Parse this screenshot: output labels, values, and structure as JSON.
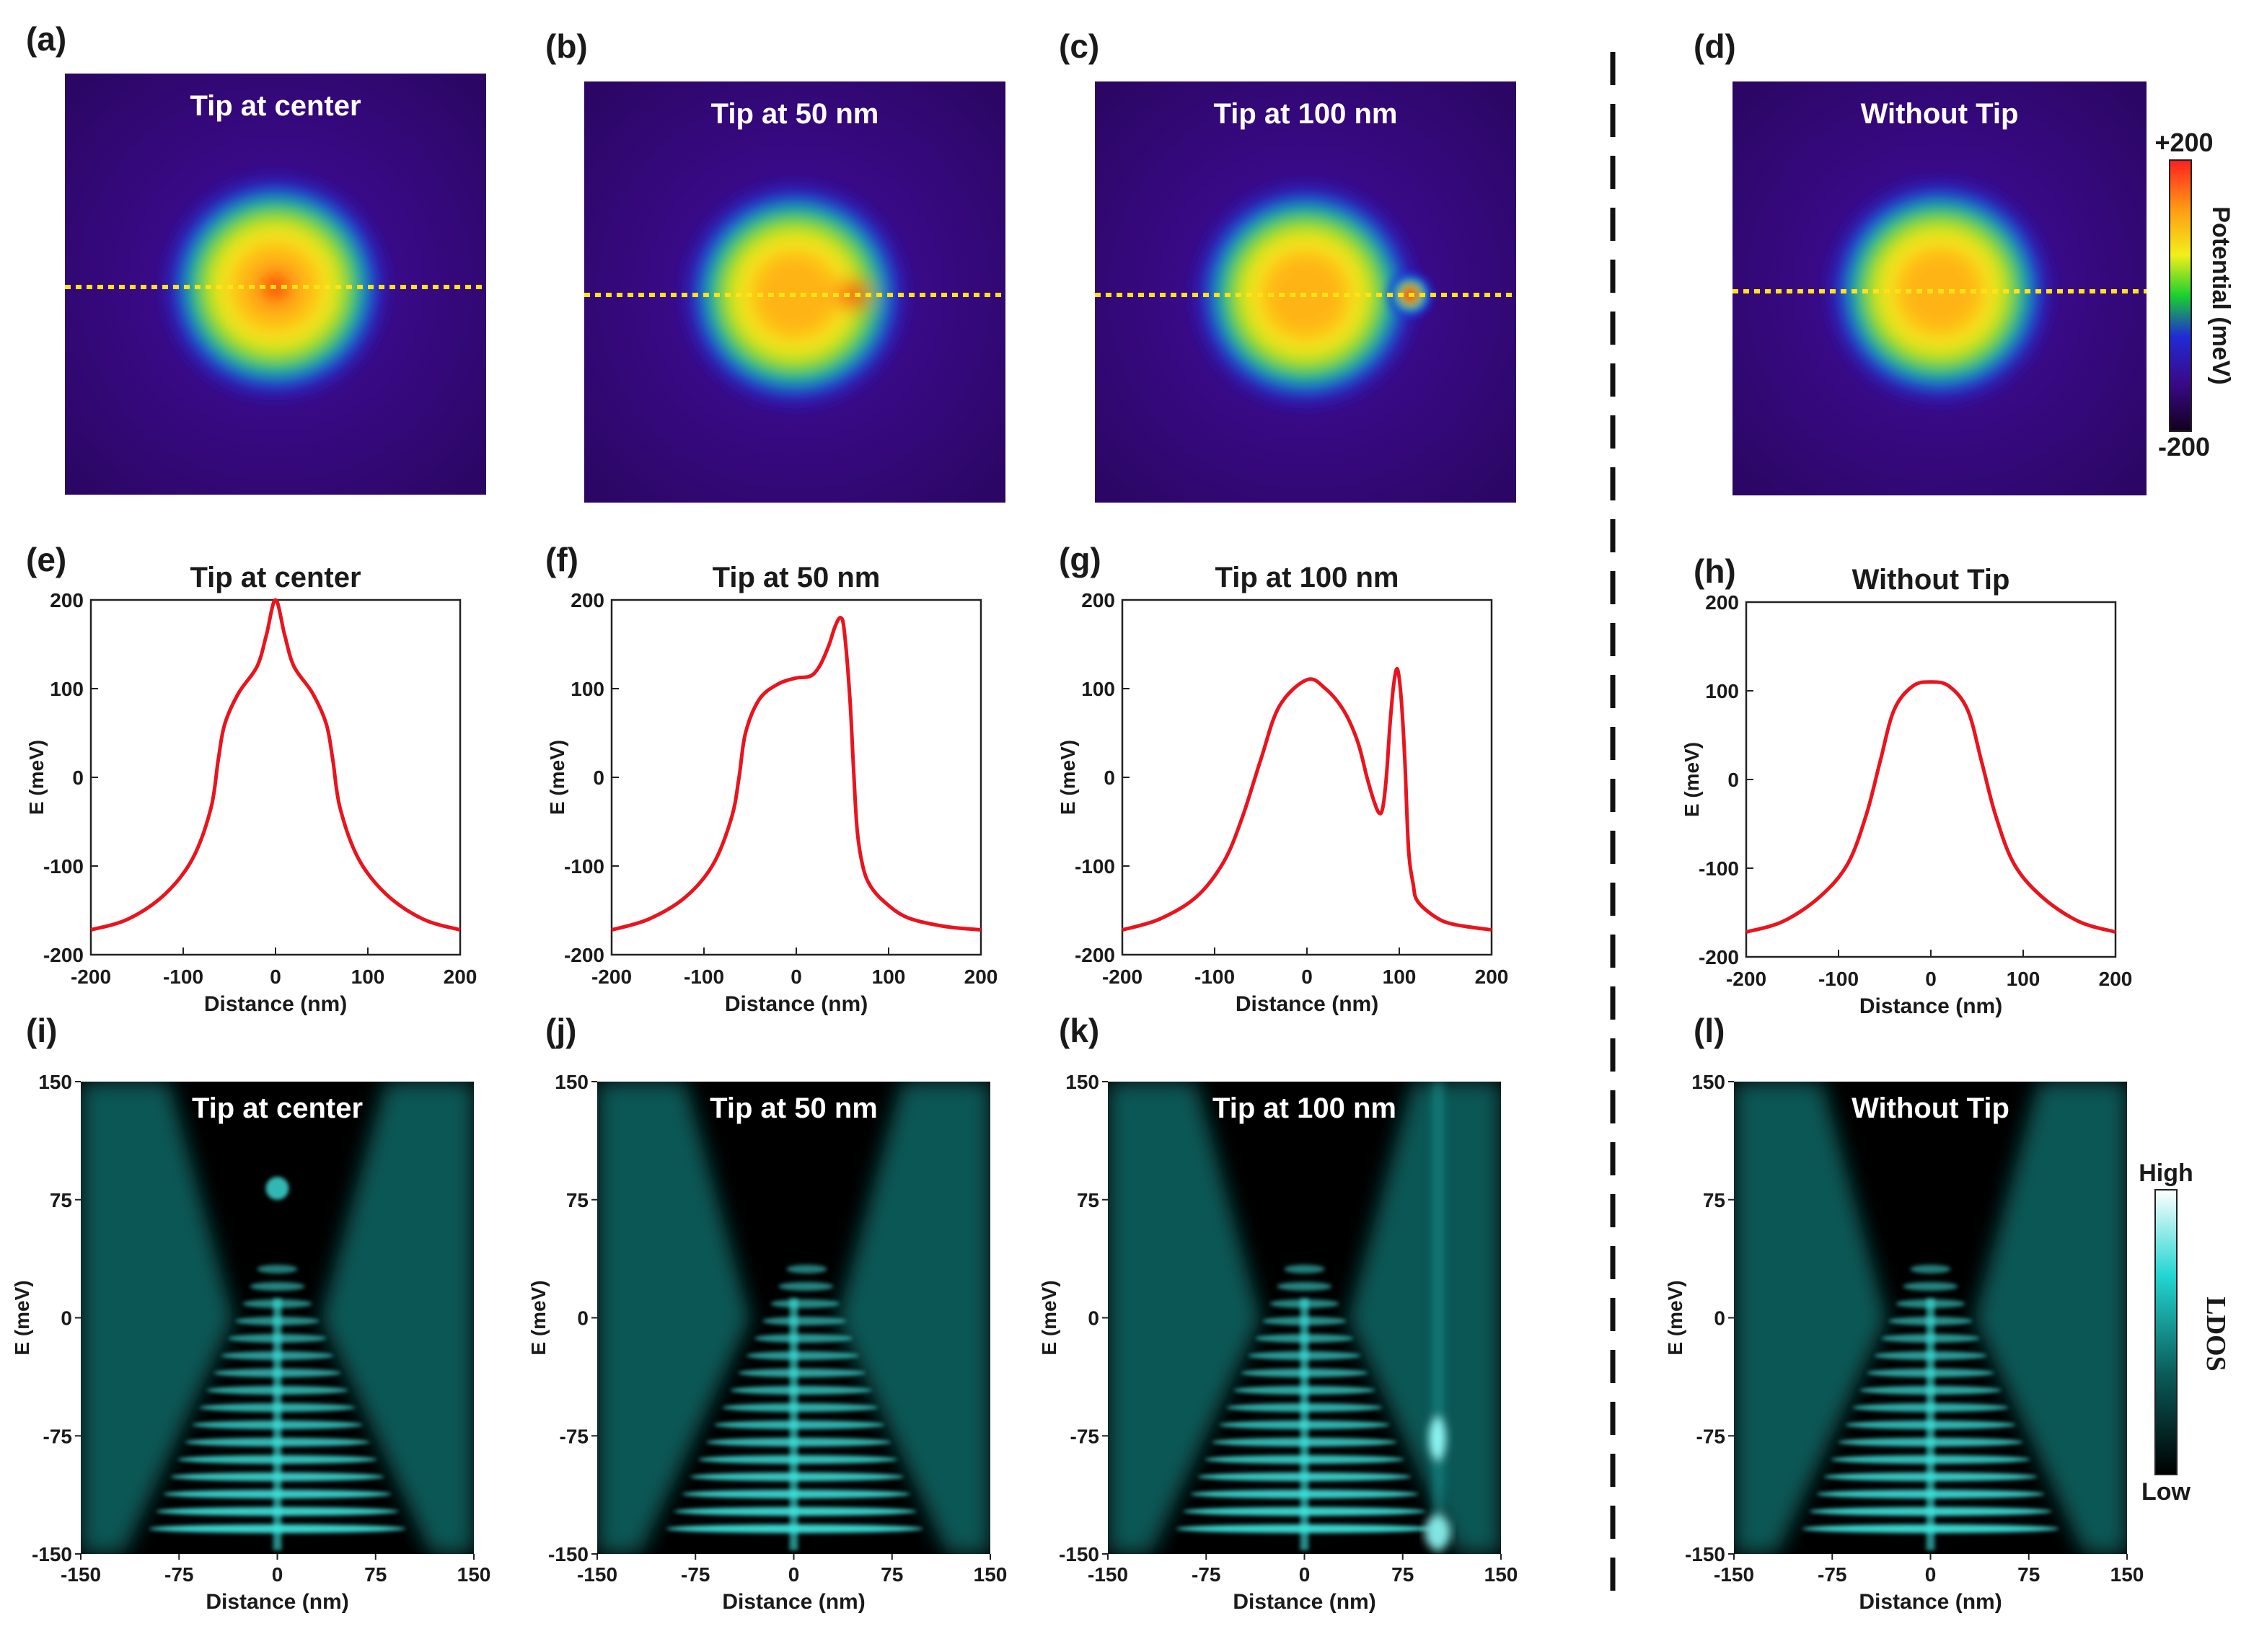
{
  "row1": {
    "panels": [
      {
        "letter": "(a)",
        "title": "Tip at center",
        "tip_nm": 0
      },
      {
        "letter": "(b)",
        "title": "Tip at 50 nm",
        "tip_nm": 50
      },
      {
        "letter": "(c)",
        "title": "Tip at 100 nm",
        "tip_nm": 100
      },
      {
        "letter": "(d)",
        "title": "Without Tip",
        "tip_nm": null
      }
    ],
    "colorbar": {
      "max_label": "+200",
      "min_label": "-200",
      "label": "Potential (meV)",
      "colors": [
        "#12001e",
        "#3a0a8a",
        "#1f2bd6",
        "#19d12e",
        "#f2ef1a",
        "#ff9a14",
        "#ff1f1f"
      ]
    }
  },
  "row2": {
    "panels": [
      {
        "letter": "(e)",
        "title": "Tip at center"
      },
      {
        "letter": "(f)",
        "title": "Tip at 50 nm"
      },
      {
        "letter": "(g)",
        "title": "Tip at 100 nm"
      },
      {
        "letter": "(h)",
        "title": "Without Tip"
      }
    ],
    "xlabel": "Distance (nm)",
    "ylabel": "E (meV)",
    "xticks": [
      "-200",
      "-100",
      "0",
      "100",
      "200"
    ],
    "yticks": [
      "200",
      "100",
      "0",
      "-100",
      "-200"
    ],
    "line_color": "#e8141e"
  },
  "row3": {
    "panels": [
      {
        "letter": "(i)",
        "title": "Tip at center"
      },
      {
        "letter": "(j)",
        "title": "Tip at 50 nm"
      },
      {
        "letter": "(k)",
        "title": "Tip at 100 nm"
      },
      {
        "letter": "(l)",
        "title": "Without Tip"
      }
    ],
    "xlabel": "Distance (nm)",
    "ylabel": "E (meV)",
    "xticks": [
      "-150",
      "-75",
      "0",
      "75",
      "150"
    ],
    "yticks": [
      "150",
      "75",
      "0",
      "-75",
      "-150"
    ],
    "colorbar": {
      "high_label": "High",
      "low_label": "Low",
      "label": "LDOS"
    }
  },
  "chart_data": [
    {
      "type": "heatmap",
      "title": "Tip at center",
      "quantity": "Potential (meV)",
      "range": [
        -200,
        200
      ],
      "tip_position_nm": 0
    },
    {
      "type": "heatmap",
      "title": "Tip at 50 nm",
      "quantity": "Potential (meV)",
      "range": [
        -200,
        200
      ],
      "tip_position_nm": 50
    },
    {
      "type": "heatmap",
      "title": "Tip at 100 nm",
      "quantity": "Potential (meV)",
      "range": [
        -200,
        200
      ],
      "tip_position_nm": 100
    },
    {
      "type": "heatmap",
      "title": "Without Tip",
      "quantity": "Potential (meV)",
      "range": [
        -200,
        200
      ],
      "tip_position_nm": null
    },
    {
      "type": "line",
      "title": "Tip at center",
      "xlabel": "Distance (nm)",
      "ylabel": "E (meV)",
      "xlim": [
        -200,
        200
      ],
      "ylim": [
        -200,
        200
      ],
      "x": [
        -200,
        -160,
        -120,
        -90,
        -70,
        -62,
        -55,
        -40,
        -20,
        -10,
        0,
        10,
        20,
        40,
        55,
        62,
        70,
        90,
        120,
        160,
        200
      ],
      "y": [
        -172,
        -160,
        -132,
        -92,
        -35,
        20,
        60,
        95,
        125,
        160,
        200,
        160,
        125,
        95,
        60,
        20,
        -35,
        -92,
        -132,
        -160,
        -172
      ]
    },
    {
      "type": "line",
      "title": "Tip at 50 nm",
      "xlabel": "Distance (nm)",
      "ylabel": "E (meV)",
      "xlim": [
        -200,
        200
      ],
      "ylim": [
        -200,
        200
      ],
      "x": [
        -200,
        -160,
        -120,
        -90,
        -70,
        -62,
        -55,
        -40,
        -20,
        0,
        15,
        25,
        35,
        42,
        48,
        52,
        58,
        62,
        66,
        72,
        80,
        95,
        120,
        160,
        200
      ],
      "y": [
        -172,
        -160,
        -135,
        -98,
        -45,
        0,
        50,
        88,
        105,
        112,
        114,
        125,
        148,
        170,
        180,
        165,
        90,
        10,
        -60,
        -100,
        -122,
        -140,
        -158,
        -168,
        -172
      ]
    },
    {
      "type": "line",
      "title": "Tip at 100 nm",
      "xlabel": "Distance (nm)",
      "ylabel": "E (meV)",
      "xlim": [
        -200,
        200
      ],
      "ylim": [
        -200,
        200
      ],
      "x": [
        -200,
        -160,
        -120,
        -90,
        -70,
        -50,
        -30,
        0,
        20,
        40,
        55,
        65,
        72,
        78,
        82,
        86,
        90,
        94,
        98,
        102,
        106,
        110,
        115,
        120,
        140,
        160,
        200
      ],
      "y": [
        -172,
        -160,
        -135,
        -95,
        -45,
        20,
        80,
        110,
        100,
        75,
        40,
        0,
        -25,
        -40,
        -35,
        0,
        60,
        105,
        122,
        90,
        20,
        -80,
        -120,
        -140,
        -158,
        -166,
        -172
      ]
    },
    {
      "type": "line",
      "title": "Without Tip",
      "xlabel": "Distance (nm)",
      "ylabel": "E (meV)",
      "xlim": [
        -200,
        200
      ],
      "ylim": [
        -200,
        200
      ],
      "x": [
        -200,
        -160,
        -120,
        -90,
        -70,
        -55,
        -40,
        -20,
        0,
        20,
        40,
        55,
        70,
        90,
        120,
        160,
        200
      ],
      "y": [
        -172,
        -160,
        -132,
        -95,
        -40,
        20,
        78,
        105,
        110,
        105,
        78,
        20,
        -40,
        -95,
        -132,
        -160,
        -172
      ]
    },
    {
      "type": "heatmap",
      "title": "Tip at center",
      "quantity": "LDOS",
      "xlim": [
        -150,
        150
      ],
      "ylim": [
        -150,
        150
      ]
    },
    {
      "type": "heatmap",
      "title": "Tip at 50 nm",
      "quantity": "LDOS",
      "xlim": [
        -150,
        150
      ],
      "ylim": [
        -150,
        150
      ]
    },
    {
      "type": "heatmap",
      "title": "Tip at 100 nm",
      "quantity": "LDOS",
      "xlim": [
        -150,
        150
      ],
      "ylim": [
        -150,
        150
      ]
    },
    {
      "type": "heatmap",
      "title": "Without Tip",
      "quantity": "LDOS",
      "xlim": [
        -150,
        150
      ],
      "ylim": [
        -150,
        150
      ]
    }
  ]
}
